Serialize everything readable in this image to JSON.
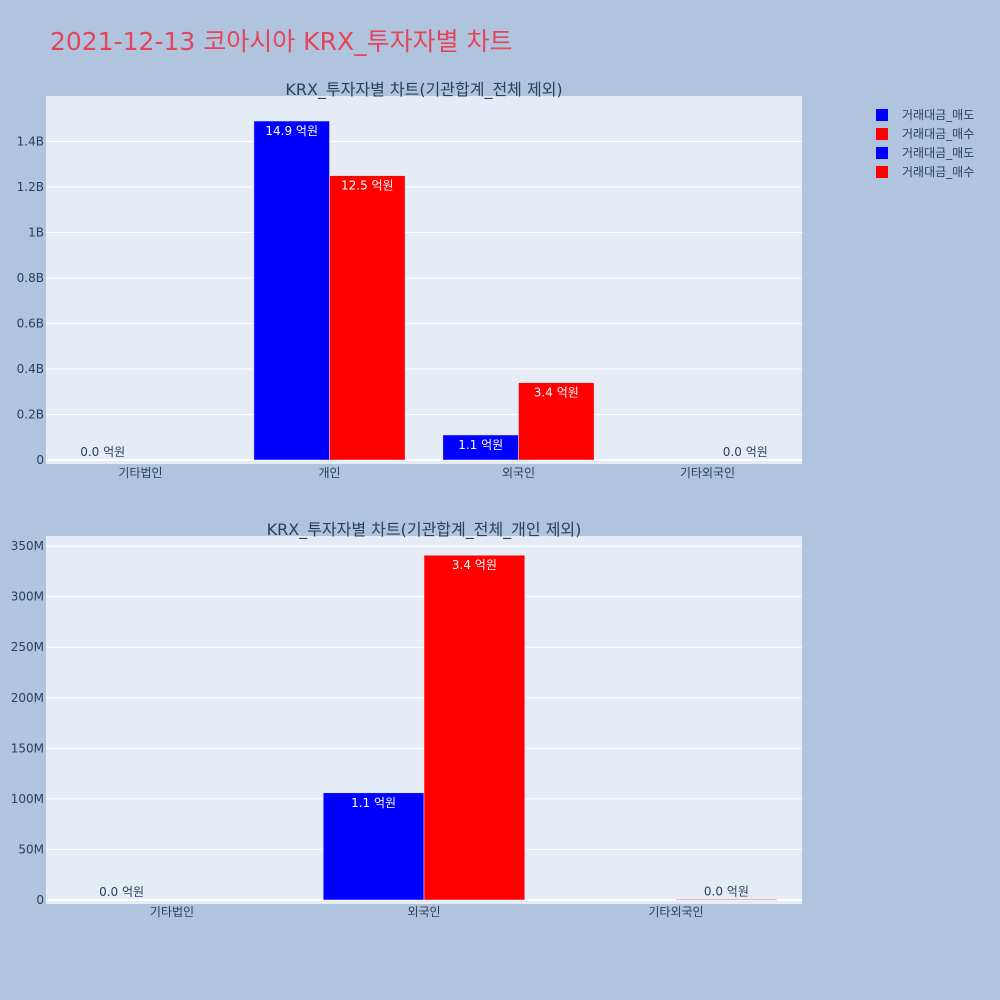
{
  "page_title": "2021-12-13 코아시아 KRX_투자자별 차트",
  "colors": {
    "sell": "#0000ff",
    "buy": "#ff0000",
    "title": "#e4455a"
  },
  "legend": [
    {
      "label": "거래대금_매도",
      "color": "#0000ff"
    },
    {
      "label": "거래대금_매수",
      "color": "#ff0000"
    },
    {
      "label": "거래대금_매도",
      "color": "#0000ff"
    },
    {
      "label": "거래대금_매수",
      "color": "#ff0000"
    }
  ],
  "chart_data": [
    {
      "type": "bar",
      "title": "KRX_투자자별 차트(기관합계_전체 제외)",
      "categories": [
        "기타법인",
        "개인",
        "외국인",
        "기타외국인"
      ],
      "ylim": [
        0,
        1600000000
      ],
      "yticks": [
        0,
        200000000,
        400000000,
        600000000,
        800000000,
        1000000000,
        1200000000,
        1400000000
      ],
      "ytick_labels": [
        "0",
        "0.2B",
        "0.4B",
        "0.6B",
        "0.8B",
        "1B",
        "1.2B",
        "1.4B"
      ],
      "series": [
        {
          "name": "거래대금_매도",
          "color": "#0000ff",
          "values": [
            0,
            1490000000,
            110000000,
            0
          ],
          "labels": [
            "0.0 억원",
            "14.9 억원",
            "1.1 억원",
            ""
          ]
        },
        {
          "name": "거래대금_매수",
          "color": "#ff0000",
          "values": [
            0,
            1250000000,
            340000000,
            0
          ],
          "labels": [
            "",
            "12.5 억원",
            "3.4 억원",
            "0.0 억원"
          ]
        }
      ],
      "grid": true
    },
    {
      "type": "bar",
      "title": "KRX_투자자별 차트(기관합계_전체_개인 제외)",
      "categories": [
        "기타법인",
        "외국인",
        "기타외국인"
      ],
      "ylim": [
        0,
        360000000
      ],
      "yticks": [
        0,
        50000000,
        100000000,
        150000000,
        200000000,
        250000000,
        300000000,
        350000000
      ],
      "ytick_labels": [
        "0",
        "50M",
        "100M",
        "150M",
        "200M",
        "250M",
        "300M",
        "350M"
      ],
      "series": [
        {
          "name": "거래대금_매도",
          "color": "#0000ff",
          "values": [
            0,
            106000000,
            0
          ],
          "labels": [
            "0.0 억원",
            "1.1 억원",
            ""
          ]
        },
        {
          "name": "거래대금_매수",
          "color": "#ff0000",
          "values": [
            0,
            341000000,
            500000
          ],
          "labels": [
            "",
            "3.4 억원",
            "0.0 억원"
          ]
        }
      ],
      "grid": true
    }
  ]
}
